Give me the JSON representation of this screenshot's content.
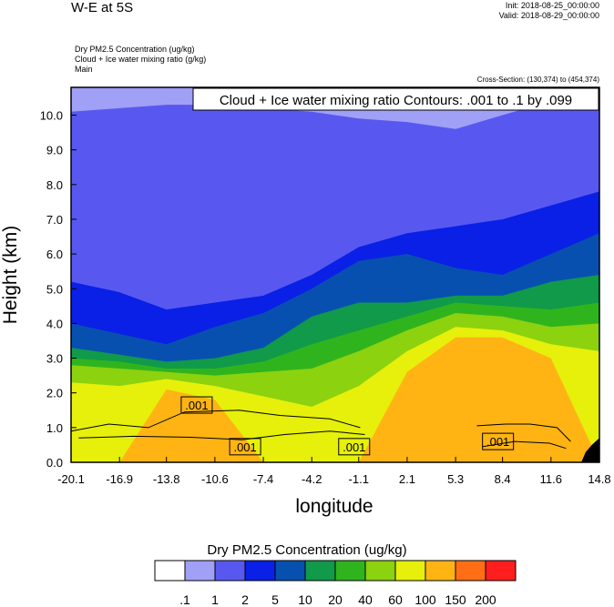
{
  "header": {
    "title": "W-E at 5S",
    "init": "Init: 2018-08-25_00:00:00",
    "valid": "Valid: 2018-08-29_00:00:00",
    "fields": [
      "Dry PM2.5 Concentration   (ug/kg)",
      "Cloud + Ice water mixing ratio   (g/kg)",
      "Main"
    ],
    "cross_section": "Cross-Section: (130,374) to (454,374)"
  },
  "chart_data": {
    "type": "heatmap",
    "title": "W-E at 5S",
    "xlabel": "longitude",
    "ylabel": "Height (km)",
    "x_ticks": [
      "-20.1",
      "-16.9",
      "-13.8",
      "-10.6",
      "-7.4",
      "-4.2",
      "-1.1",
      "2.1",
      "5.3",
      "8.4",
      "11.6",
      "14.8"
    ],
    "y_ticks": [
      "0.0",
      "1.0",
      "2.0",
      "3.0",
      "4.0",
      "5.0",
      "6.0",
      "7.0",
      "8.0",
      "9.0",
      "10.0"
    ],
    "xlim": [
      -20.1,
      14.8
    ],
    "ylim": [
      0,
      10.8
    ],
    "contour_label": "Cloud + Ice water mixing ratio Contours: .001 to .1 by .099",
    "contour_values": [
      ".001",
      ".001",
      ".001",
      ".001"
    ],
    "colorbar": {
      "title": "Dry PM2.5 Concentration  (ug/kg)",
      "levels": [
        ".1",
        "1",
        "2",
        "5",
        "10",
        "20",
        "40",
        "60",
        "100",
        "150",
        "200"
      ],
      "colors": [
        "#ffffff",
        "#a0a0f6",
        "#5858f0",
        "#0a20e6",
        "#0850b0",
        "#109a4a",
        "#30b41e",
        "#8cd20e",
        "#e6f00a",
        "#ffb414",
        "#ff6e14",
        "#ff1e1e"
      ]
    },
    "height_profile": {
      "x": [
        -20.1,
        -16.9,
        -13.8,
        -10.6,
        -7.4,
        -4.2,
        -1.1,
        2.1,
        5.3,
        8.4,
        11.6,
        14.8
      ],
      "white_to": [
        10.8,
        10.8,
        10.8,
        10.8,
        10.8,
        10.8,
        10.8,
        10.8,
        10.8,
        10.8,
        10.8,
        10.8
      ],
      "light_blue_to": [
        10.8,
        10.8,
        10.8,
        10.8,
        10.8,
        10.8,
        10.8,
        10.8,
        10.8,
        10.8,
        10.8,
        10.8
      ],
      "blue_to": [
        10.1,
        10.2,
        10.3,
        10.3,
        10.2,
        10.1,
        9.9,
        9.8,
        9.6,
        10.0,
        10.4,
        10.5
      ],
      "dark_blue_to": [
        5.2,
        4.9,
        4.4,
        4.6,
        4.8,
        5.4,
        6.2,
        6.6,
        6.8,
        7.0,
        7.4,
        7.8
      ],
      "teal_to": [
        4.0,
        3.7,
        3.4,
        3.9,
        4.3,
        5.0,
        5.8,
        6.0,
        5.6,
        5.4,
        6.0,
        6.6
      ],
      "dgreen_to": [
        3.3,
        3.1,
        2.9,
        3.0,
        3.3,
        4.2,
        4.6,
        4.6,
        4.8,
        4.8,
        5.2,
        5.4
      ],
      "green_to": [
        3.0,
        2.9,
        2.7,
        2.7,
        2.9,
        3.4,
        3.8,
        4.2,
        4.6,
        4.5,
        4.4,
        4.6
      ],
      "yellowgreen_to": [
        2.8,
        2.7,
        2.6,
        2.5,
        2.6,
        2.7,
        3.2,
        3.8,
        4.3,
        4.2,
        3.9,
        4.0
      ],
      "yellow_to": [
        2.3,
        2.2,
        2.4,
        2.2,
        1.9,
        1.6,
        2.2,
        3.2,
        3.9,
        3.8,
        3.4,
        3.2
      ],
      "orange_to": [
        0.0,
        0.0,
        2.1,
        1.8,
        0.0,
        0.0,
        0.0,
        2.6,
        3.6,
        3.6,
        3.0,
        0.0
      ]
    }
  }
}
